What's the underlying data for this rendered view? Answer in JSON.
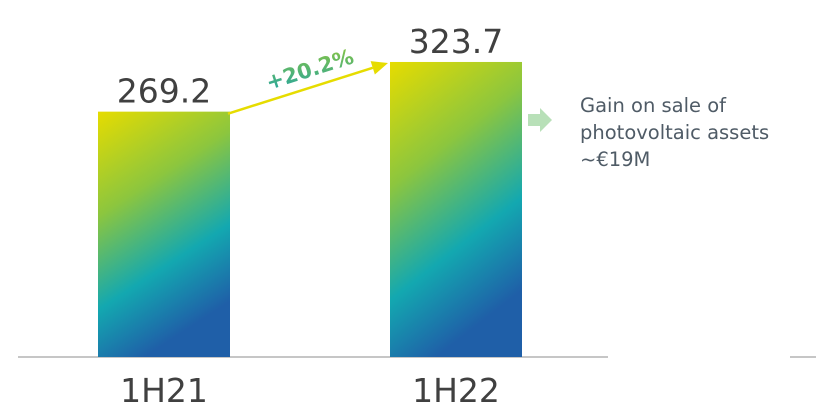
{
  "chart_data": {
    "type": "bar",
    "categories": [
      "1H21",
      "1H22"
    ],
    "values": [
      269.2,
      323.7
    ],
    "value_labels": [
      "269.2",
      "323.7"
    ],
    "growth_label": "+20.2%",
    "ylim": [
      0,
      350
    ],
    "grid": false,
    "gradient_colors": [
      "#e6dc00",
      "#8cc63e",
      "#13a8b0",
      "#1f5fa8"
    ],
    "growth_arrow_color": "#e6dc00",
    "growth_text_colors": [
      "#1fa3a6",
      "#8cc63e"
    ]
  },
  "annotation": {
    "lines": [
      "Gain on sale of",
      "photovoltaic assets",
      "~€19M"
    ],
    "arrow_color": "#b8e0b8"
  }
}
